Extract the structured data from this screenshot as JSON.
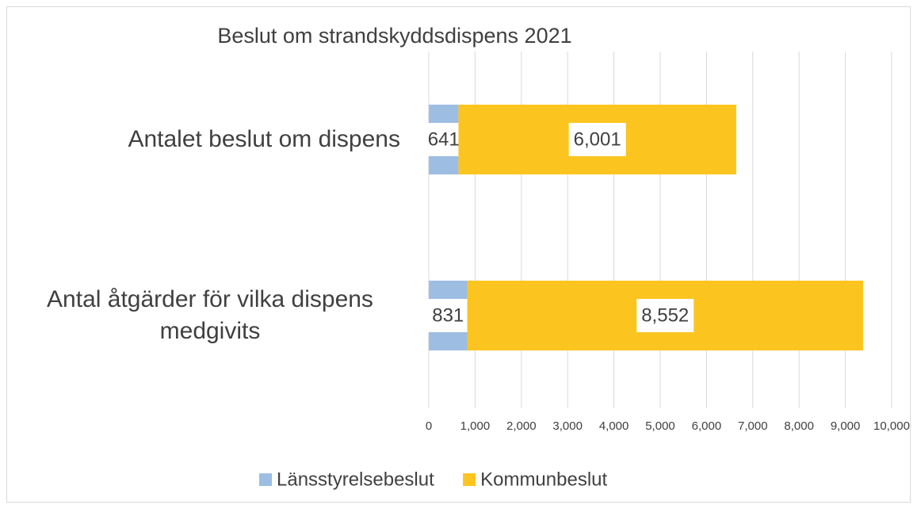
{
  "chart_data": {
    "type": "stacked_bar_horizontal",
    "title": "Beslut om strandskyddsdispens 2021",
    "categories": [
      "Antalet beslut om dispens",
      "Antal åtgärder för vilka dispens medgivits"
    ],
    "series": [
      {
        "name": "Länsstyrelsebeslut",
        "color": "#9dbde3",
        "values": [
          641,
          831
        ]
      },
      {
        "name": "Kommunbeslut",
        "color": "#fcc41f",
        "values": [
          6001,
          8552
        ],
        "value_labels": [
          "6,001",
          "8,552"
        ]
      }
    ],
    "xlim": [
      0,
      10000
    ],
    "xticks": [
      0,
      {
        "value": 1000,
        "label": "1,000"
      },
      {
        "value": 2000,
        "label": "2,000"
      },
      {
        "value": 3000,
        "label": "3,000"
      },
      {
        "value": 4000,
        "label": "4,000"
      },
      {
        "value": 5000,
        "label": "5,000"
      },
      {
        "value": 6000,
        "label": "6,000"
      },
      {
        "value": 7000,
        "label": "7,000"
      },
      {
        "value": 8000,
        "label": "8,000"
      },
      {
        "value": 9000,
        "label": "9,000"
      },
      {
        "value": 10000,
        "label": "10,000"
      }
    ],
    "grid": true,
    "legend": "bottom"
  }
}
